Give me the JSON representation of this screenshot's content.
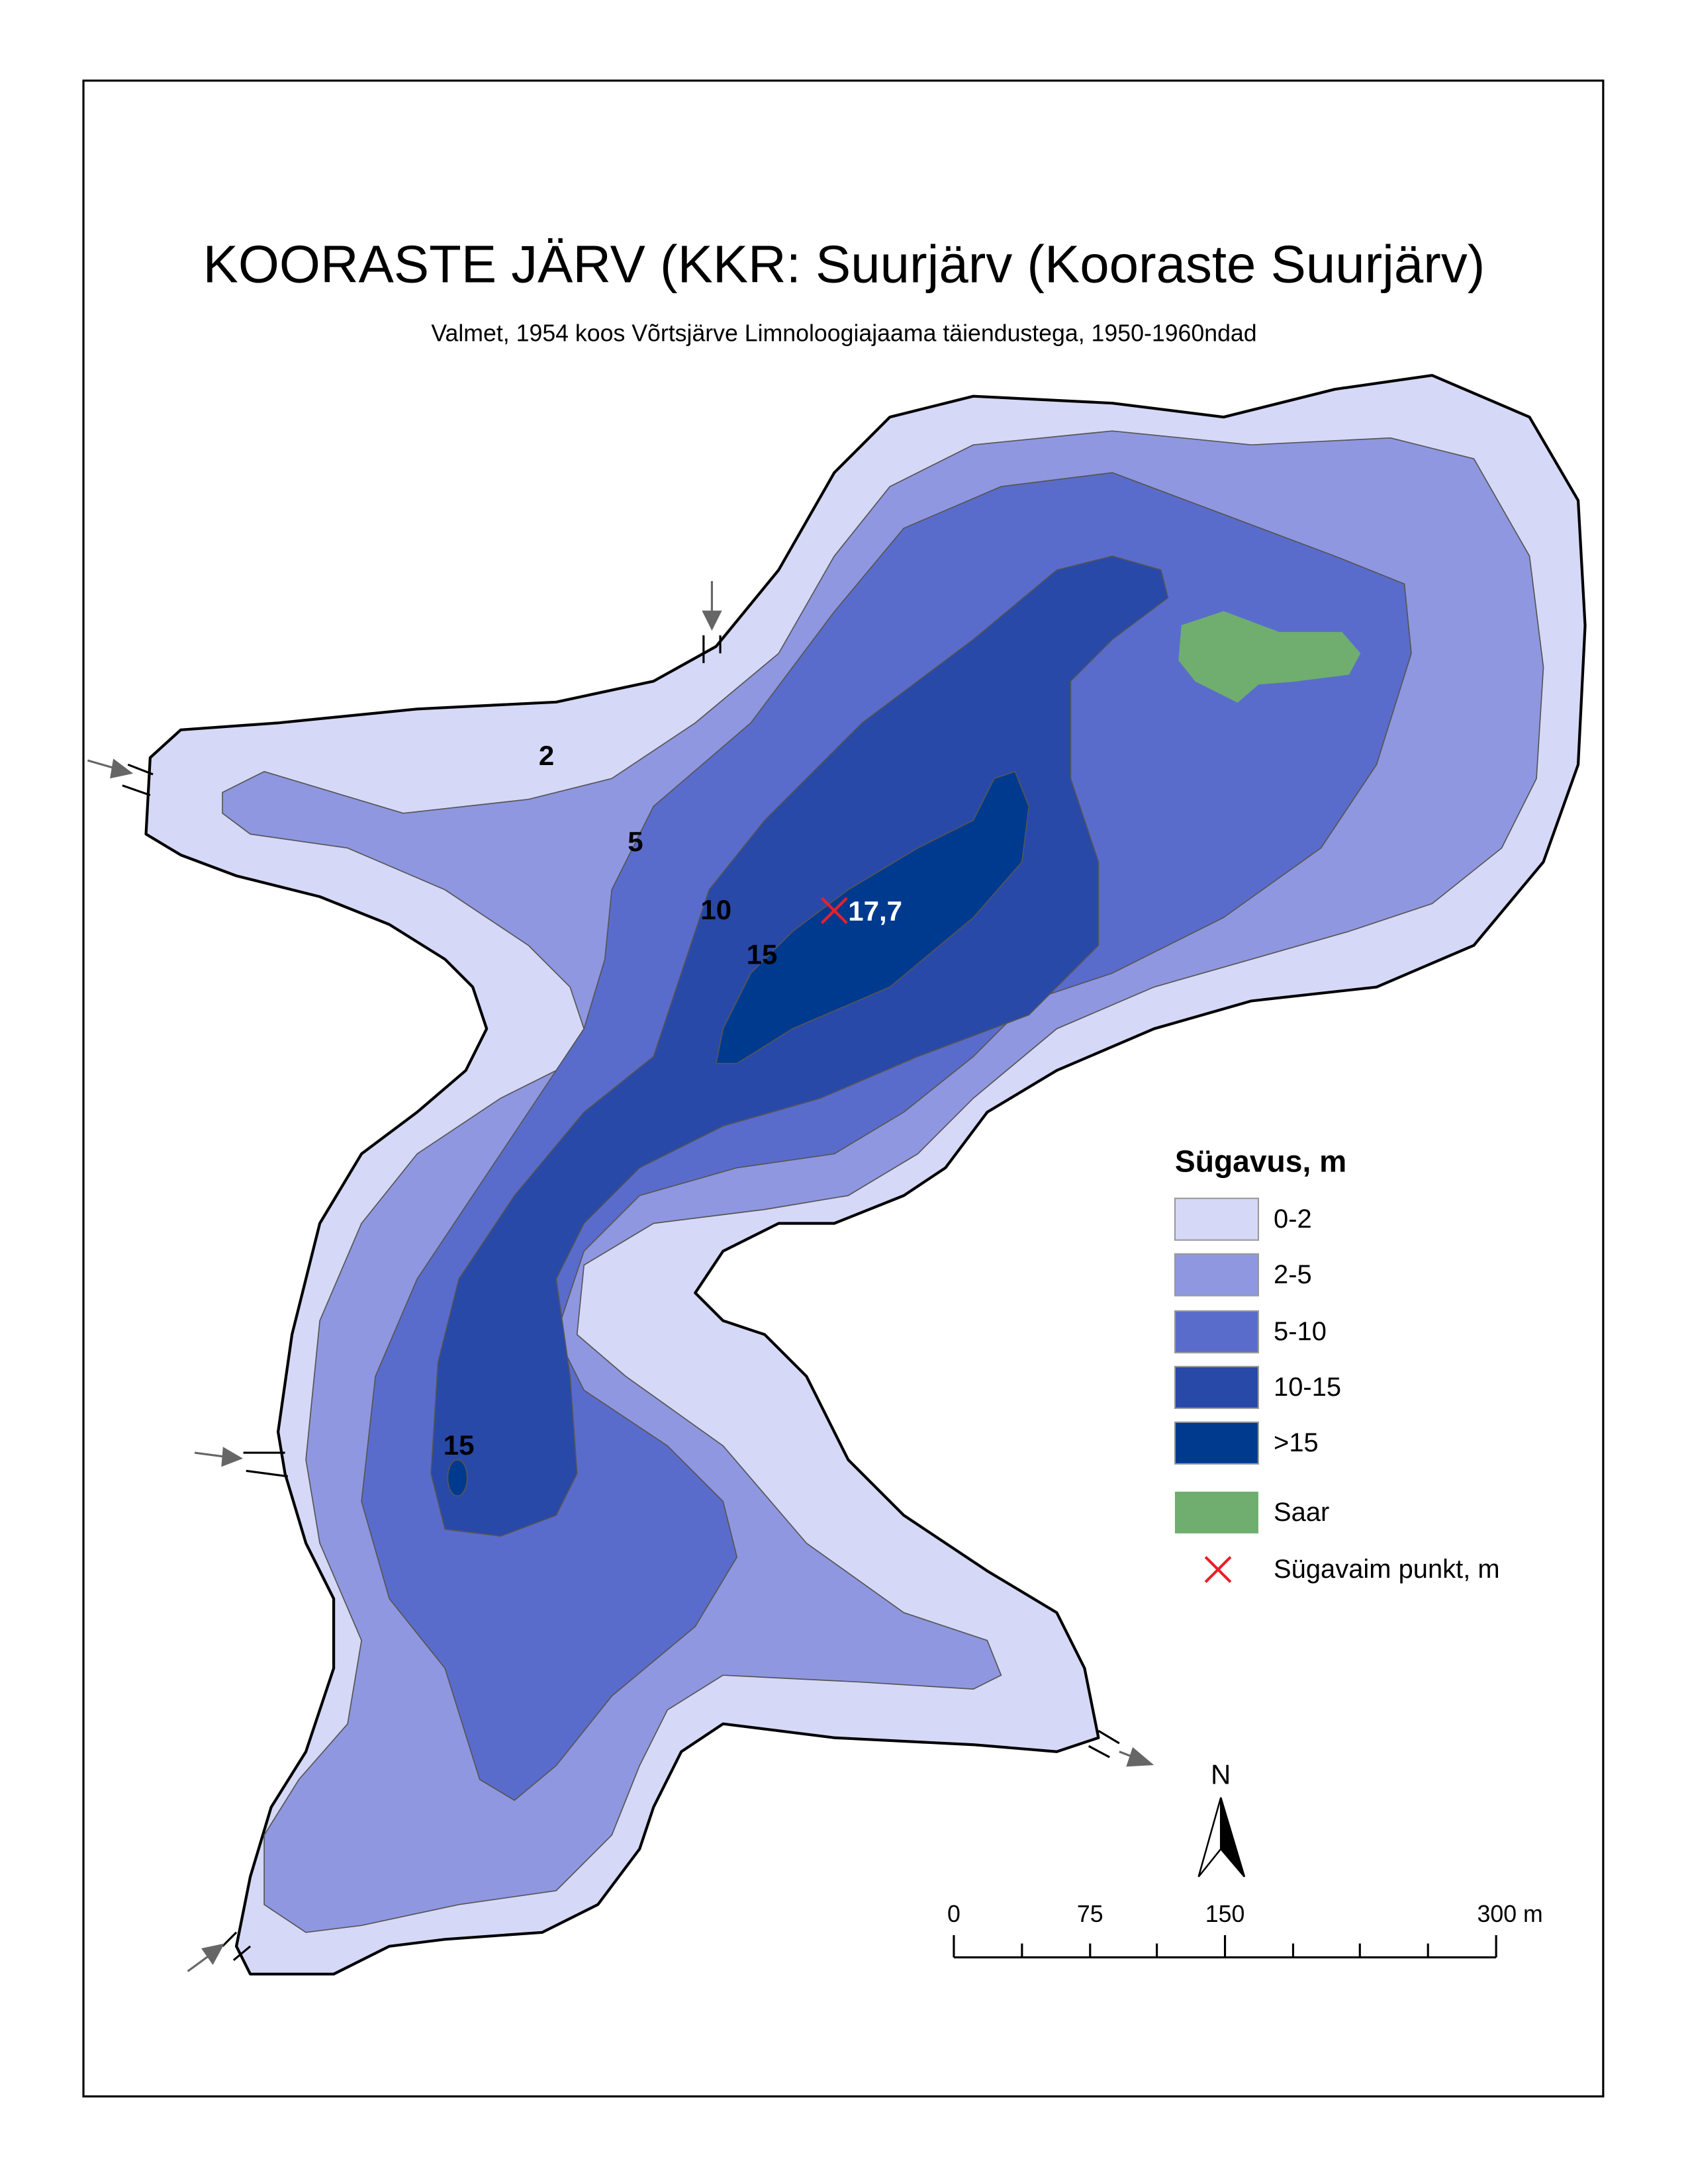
{
  "header": {
    "title": "KOORASTE JÄRV (KKR: Suurjärv (Kooraste Suurjärv)",
    "subtitle": "Valmet, 1954 koos Võrtsjärve Limnoloogiajaama täiendustega, 1950-1960ndad"
  },
  "map": {
    "contour_labels": [
      "2",
      "5",
      "10",
      "15",
      "15"
    ],
    "deepest_point": "17,7"
  },
  "legend": {
    "title": "Sügavus, m",
    "items": [
      "0-2",
      "2-5",
      "5-10",
      "10-15",
      ">15",
      "Saar"
    ],
    "marker": "Sügavaim punkt, m"
  },
  "north_arrow": "N",
  "scale_bar": {
    "labels": [
      "0",
      "75",
      "150",
      "300 m"
    ]
  }
}
